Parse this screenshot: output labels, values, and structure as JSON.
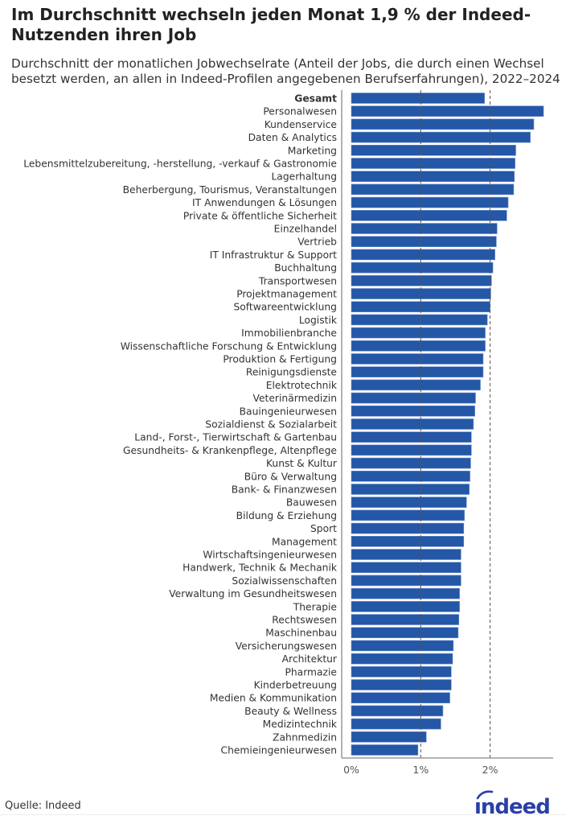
{
  "title": "Im Durchschnitt wechseln jeden Monat 1,9 % der Indeed-Nutzenden ihren Job",
  "subtitle": "Durchschnitt der monatlichen Jobwechselrate (Anteil der Jobs, die durch einen Wechsel besetzt werden, an allen in Indeed-Profilen angegebenen Berufserfahrungen), 2022–2024",
  "source": "Quelle: Indeed",
  "logo_text": "indeed",
  "colors": {
    "bar": "#2457a6",
    "logo": "#2a3fa8",
    "ref_line": "#555555"
  },
  "chart_data": {
    "type": "bar",
    "orientation": "horizontal",
    "title": "Im Durchschnitt wechseln jeden Monat 1,9 % der Indeed-Nutzenden ihren Job",
    "xlabel": "",
    "ylabel": "",
    "xlim": [
      0,
      2.9
    ],
    "x_ticks": [
      0,
      1,
      2
    ],
    "x_tick_labels": [
      "0%",
      "1%",
      "2%"
    ],
    "reference_lines": [
      1,
      2
    ],
    "categories": [
      "Gesamt",
      "Personalwesen",
      "Kundenservice",
      "Daten & Analytics",
      "Marketing",
      "Lebensmittelzubereitung, -herstellung,  -verkauf  & Gastronomie",
      "Lagerhaltung",
      "Beherbergung, Tourismus, Veranstaltungen",
      "IT Anwendungen & Lösungen",
      "Private & öffentliche Sicherheit",
      "Einzelhandel",
      "Vertrieb",
      "IT Infrastruktur & Support",
      "Buchhaltung",
      "Transportwesen",
      "Projektmanagement",
      "Softwareentwicklung",
      "Logistik",
      "Immobilienbranche",
      "Wissenschaftliche Forschung & Entwicklung",
      "Produktion & Fertigung",
      "Reinigungsdienste",
      "Elektrotechnik",
      "Veterinärmedizin",
      "Bauingenieurwesen",
      "Sozialdienst & Sozialarbeit",
      "Land-,  Forst-,  Tierwirtschaft & Gartenbau",
      "Gesundheits-  & Krankenpflege, Altenpflege",
      "Kunst & Kultur",
      "Büro & Verwaltung",
      "Bank-  & Finanzwesen",
      "Bauwesen",
      "Bildung & Erziehung",
      "Sport",
      "Management",
      "Wirtschaftsingenieurwesen",
      "Handwerk, Technik & Mechanik",
      "Sozialwissenschaften",
      "Verwaltung im Gesundheitswesen",
      "Therapie",
      "Rechtswesen",
      "Maschinenbau",
      "Versicherungswesen",
      "Architektur",
      "Pharmazie",
      "Kinderbetreuung",
      "Medien & Kommunikation",
      "Beauty & Wellness",
      "Medizintechnik",
      "Zahnmedizin",
      "Chemieingenieurwesen"
    ],
    "values": [
      1.92,
      2.77,
      2.63,
      2.58,
      2.37,
      2.36,
      2.35,
      2.34,
      2.26,
      2.24,
      2.1,
      2.09,
      2.07,
      2.04,
      2.02,
      2.01,
      2.0,
      1.96,
      1.93,
      1.93,
      1.9,
      1.9,
      1.86,
      1.79,
      1.78,
      1.76,
      1.73,
      1.73,
      1.72,
      1.71,
      1.7,
      1.66,
      1.63,
      1.62,
      1.62,
      1.58,
      1.58,
      1.58,
      1.56,
      1.56,
      1.55,
      1.54,
      1.47,
      1.46,
      1.44,
      1.44,
      1.42,
      1.32,
      1.29,
      1.08,
      0.96
    ],
    "highlight_category": "Gesamt",
    "unit": "%"
  }
}
